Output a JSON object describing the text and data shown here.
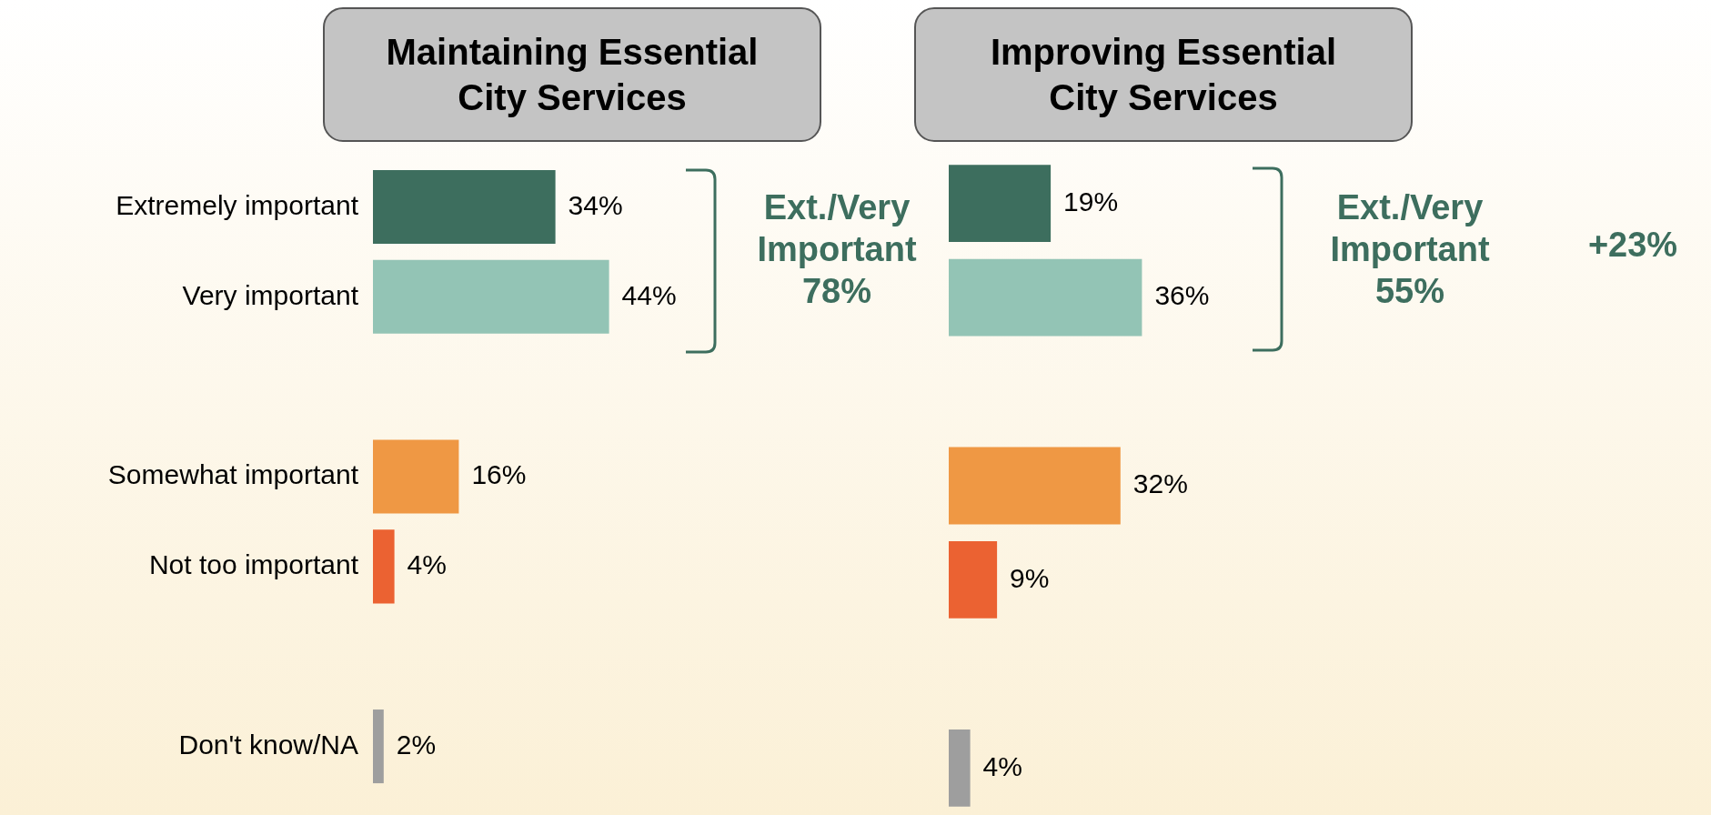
{
  "chart_data": [
    {
      "type": "bar",
      "orientation": "horizontal",
      "title": "Maintaining Essential City Services",
      "categories": [
        "Extremely important",
        "Very important",
        null,
        "Somewhat important",
        "Not too important",
        null,
        "Don't know/NA"
      ],
      "values": [
        34,
        44,
        null,
        16,
        4,
        null,
        2
      ],
      "colors": [
        "#3d6e5e",
        "#93c4b5",
        "#ffffff",
        "#ef9844",
        "#eb6232",
        "#ffffff",
        "#9e9e9e"
      ],
      "value_labels": [
        "34%",
        "44%",
        null,
        "16%",
        "4%",
        null,
        "2%"
      ],
      "tick_labels": "y",
      "grid": false,
      "legend": false,
      "annotations": [
        "Ext./Very Important 78%"
      ]
    },
    {
      "type": "bar",
      "orientation": "horizontal",
      "title": "Improving Essential City Services",
      "categories": [
        null,
        null,
        null,
        null,
        null,
        null,
        null
      ],
      "values": [
        19,
        36,
        null,
        32,
        9,
        null,
        4
      ],
      "colors": [
        "#3d6e5e",
        "#93c4b5",
        "#ffffff",
        "#ef9844",
        "#eb6232",
        "#ffffff",
        "#9e9e9e"
      ],
      "value_labels": [
        "19%",
        "36%",
        null,
        "32%",
        "9%",
        null,
        "4%"
      ],
      "tick_labels": false,
      "grid": false,
      "legend": false,
      "annotations": [
        "Ext./Very Important 55%",
        "+23%"
      ]
    }
  ]
}
